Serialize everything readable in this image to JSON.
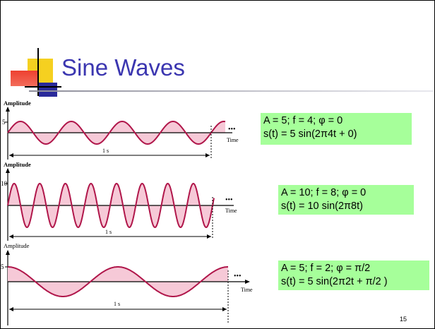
{
  "slide": {
    "title": "Sine Waves",
    "page_number": "15",
    "accent_colors": {
      "title": "#3b36b0",
      "square_yellow": "#f5d020",
      "square_red": "#ee4030",
      "square_blue": "#2a2a9a",
      "wave": "#b0164a",
      "fill": "#f6c9d7",
      "box": "#a6ff9a"
    }
  },
  "plots": [
    {
      "amplitude_label": "Amplitude",
      "y_tick": "5",
      "time_label": "Time",
      "duration_label": "1 s",
      "ellipsis": "•••",
      "param_line": "A = 5; f = 4; φ = 0",
      "equation_line": "s(t) = 5 sin(2π4t + 0)"
    },
    {
      "amplitude_label": "Amplitude",
      "y_tick": "10",
      "time_label": "Time",
      "duration_label": "1 s",
      "ellipsis": "•••",
      "param_line": "A = 10; f = 8; φ = 0",
      "equation_line": "s(t) = 10 sin(2π8t)"
    },
    {
      "amplitude_label": "Amplitude",
      "y_tick": "5",
      "time_label": "Time",
      "duration_label": "1 s",
      "ellipsis": "•••",
      "param_line": "A = 5; f = 2; φ = π/2",
      "equation_line": "s(t) = 5 sin(2π2t + π/2 )"
    }
  ],
  "chart_data": [
    {
      "type": "line",
      "amplitude": 5,
      "frequency": 4,
      "phase": 0,
      "duration_s": 1,
      "ylabel": "Amplitude",
      "xlabel": "Time"
    },
    {
      "type": "line",
      "amplitude": 10,
      "frequency": 8,
      "phase": 0,
      "duration_s": 1,
      "ylabel": "Amplitude",
      "xlabel": "Time"
    },
    {
      "type": "line",
      "amplitude": 5,
      "frequency": 2,
      "phase": 1.5708,
      "duration_s": 1,
      "ylabel": "Amplitude",
      "xlabel": "Time"
    }
  ]
}
